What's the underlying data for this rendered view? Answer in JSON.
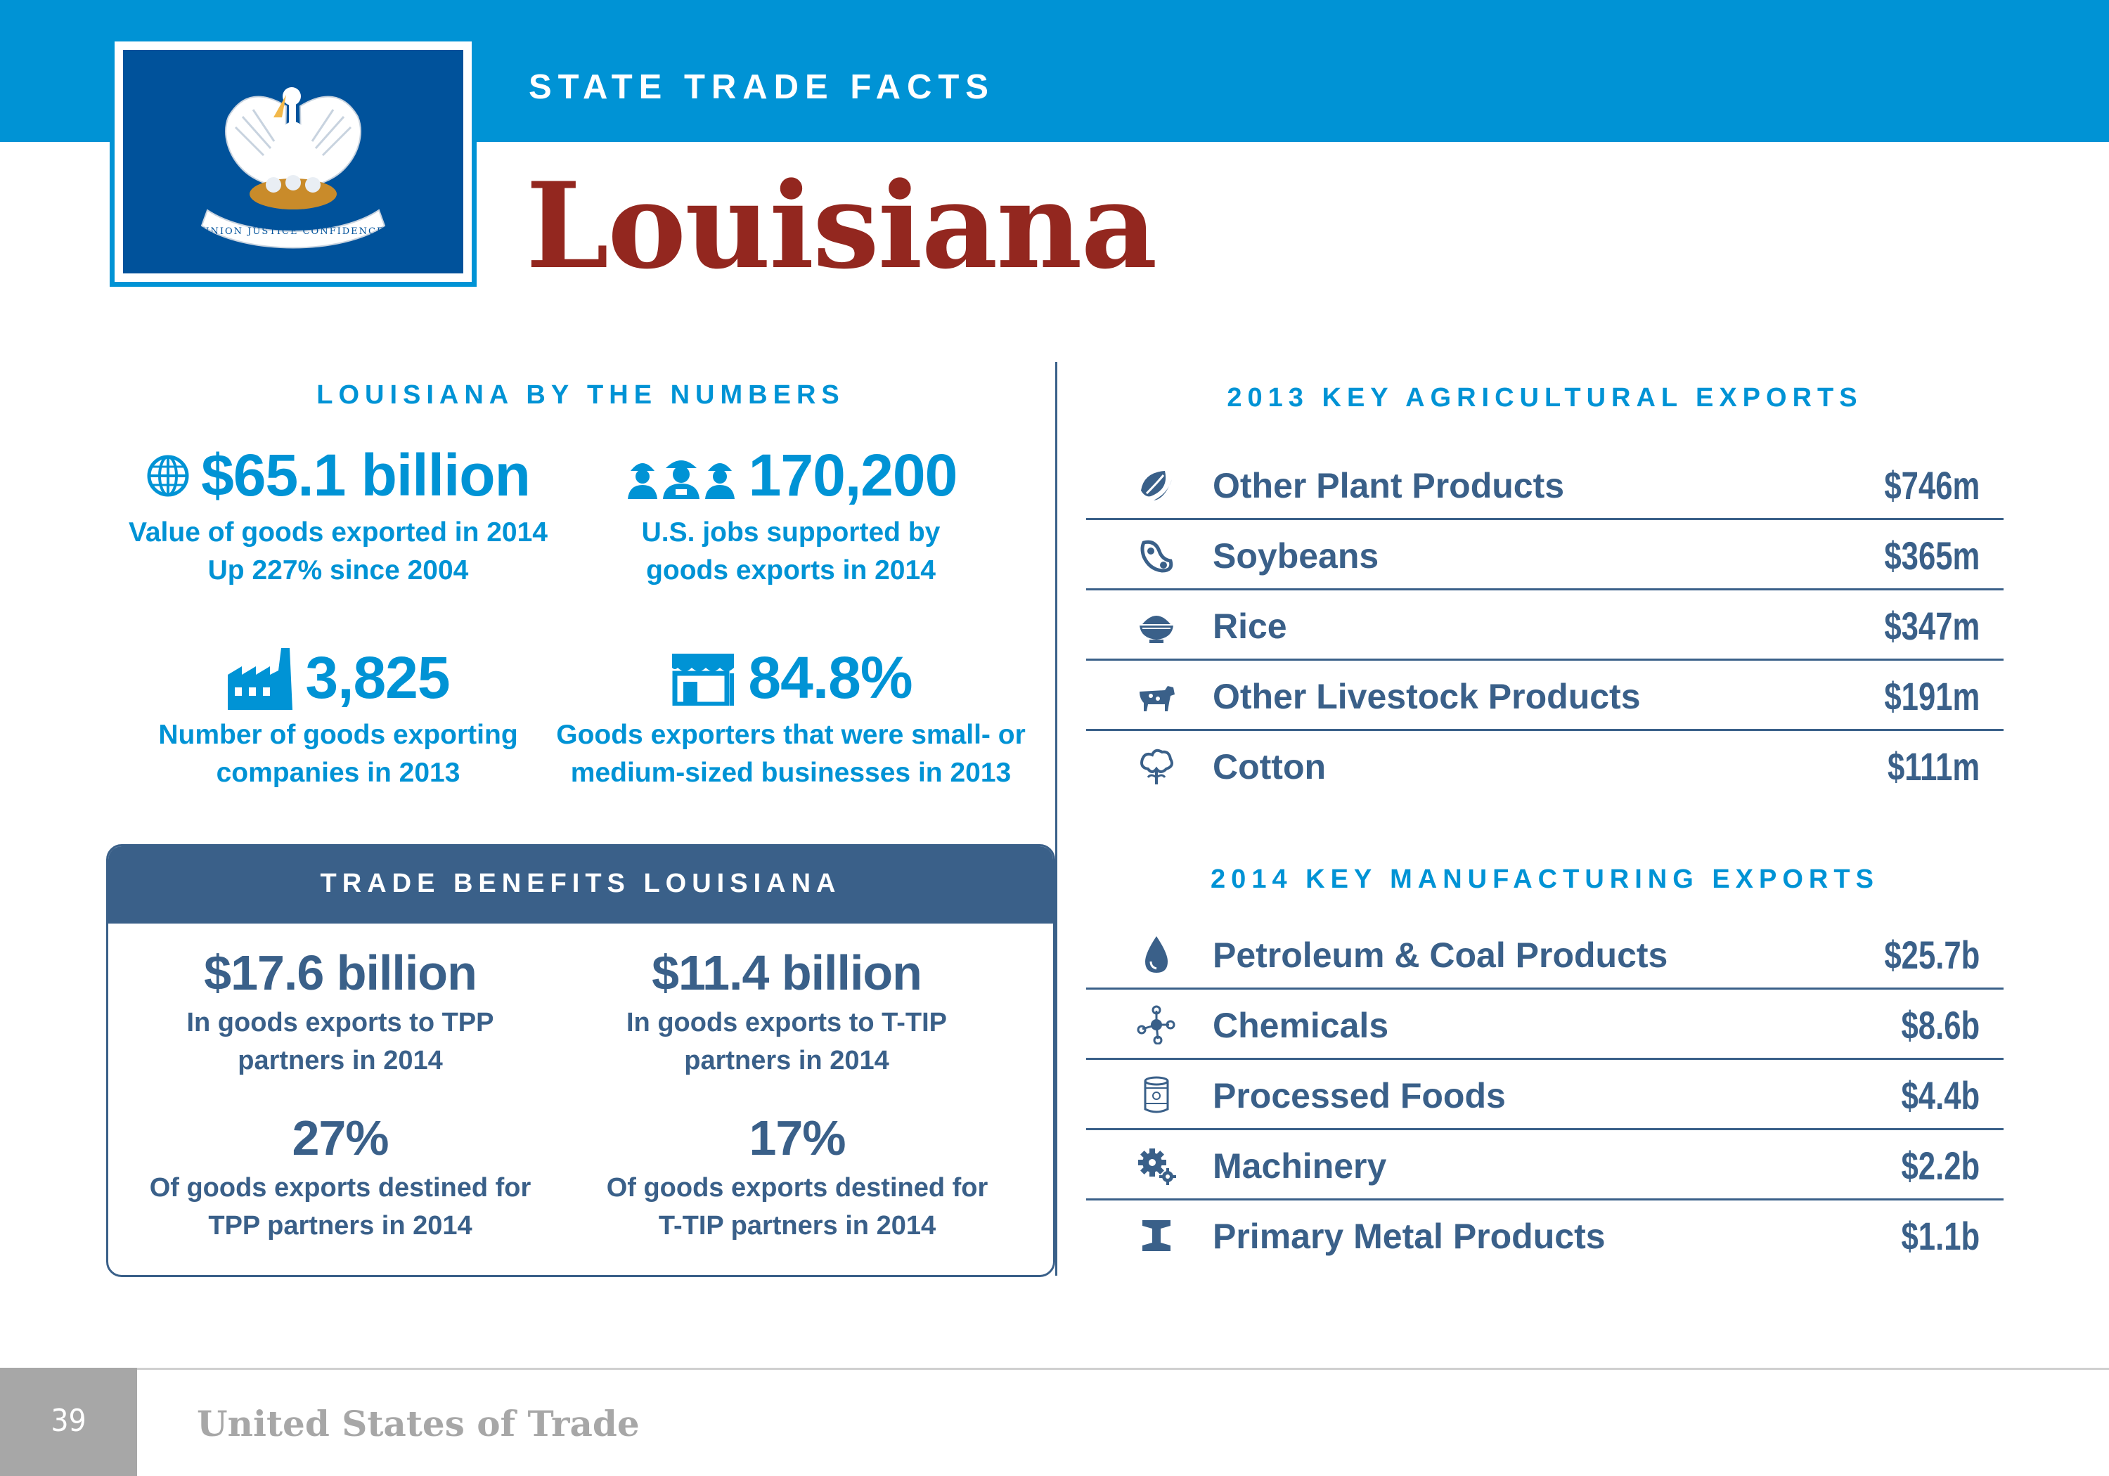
{
  "header": {
    "kicker": "STATE TRADE FACTS",
    "title": "Louisiana"
  },
  "flag": {
    "motto": "UNION JUSTICE CONFIDENCE",
    "background_color": "#00529b"
  },
  "by_the_numbers": {
    "title": "LOUISIANA BY THE NUMBERS",
    "stats": [
      {
        "icon": "globe-icon",
        "value": "$65.1 billion",
        "caption_line1": "Value of goods exported in 2014",
        "caption_line2": "Up 227% since 2004"
      },
      {
        "icon": "workers-icon",
        "value": "170,200",
        "caption_line1": "U.S. jobs supported by",
        "caption_line2": "goods exports in 2014"
      },
      {
        "icon": "factory-icon",
        "value": "3,825",
        "caption_line1": "Number of goods exporting",
        "caption_line2": "companies in 2013"
      },
      {
        "icon": "storefront-icon",
        "value": "84.8%",
        "caption_line1": "Goods exporters that were small- or",
        "caption_line2": "medium-sized businesses in 2013"
      }
    ]
  },
  "trade_benefits": {
    "title": "TRADE BENEFITS LOUISIANA",
    "stats": [
      {
        "value": "$17.6 billion",
        "caption_line1": "In goods exports to TPP",
        "caption_line2": "partners in 2014"
      },
      {
        "value": "$11.4 billion",
        "caption_line1": "In goods exports to T-TIP",
        "caption_line2": "partners in 2014"
      },
      {
        "value": "27%",
        "caption_line1": "Of goods exports destined for",
        "caption_line2": "TPP partners in 2014"
      },
      {
        "value": "17%",
        "caption_line1": "Of goods exports destined for",
        "caption_line2": "T-TIP partners in 2014"
      }
    ]
  },
  "agricultural_exports": {
    "title": "2013 KEY AGRICULTURAL EXPORTS",
    "rows": [
      {
        "icon": "leaf-icon",
        "label": "Other Plant Products",
        "value": "$746m"
      },
      {
        "icon": "soybean-icon",
        "label": "Soybeans",
        "value": "$365m"
      },
      {
        "icon": "rice-bowl-icon",
        "label": "Rice",
        "value": "$347m"
      },
      {
        "icon": "cow-icon",
        "label": "Other Livestock Products",
        "value": "$191m"
      },
      {
        "icon": "cotton-icon",
        "label": "Cotton",
        "value": "$111m"
      }
    ]
  },
  "manufacturing_exports": {
    "title": "2014 KEY MANUFACTURING EXPORTS",
    "rows": [
      {
        "icon": "oil-drop-icon",
        "label": "Petroleum & Coal Products",
        "value": "$25.7b"
      },
      {
        "icon": "molecule-icon",
        "label": "Chemicals",
        "value": "$8.6b"
      },
      {
        "icon": "can-icon",
        "label": "Processed Foods",
        "value": "$4.4b"
      },
      {
        "icon": "gears-icon",
        "label": "Machinery",
        "value": "$2.2b"
      },
      {
        "icon": "i-beam-icon",
        "label": "Primary Metal Products",
        "value": "$1.1b"
      }
    ]
  },
  "colors": {
    "brand_blue": "#0093d5",
    "navy": "#3a6089",
    "title_red": "#93271f",
    "footer_gray": "#a7a7a7"
  },
  "footer": {
    "page_number": "39",
    "text": "United States of Trade"
  }
}
